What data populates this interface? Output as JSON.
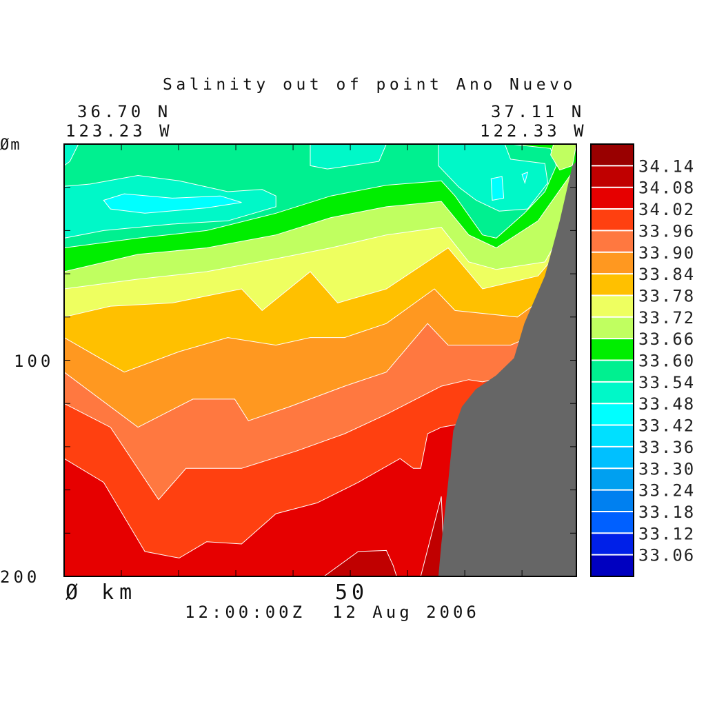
{
  "chart_data": {
    "type": "heatmap",
    "subtype": "filled-contour-section",
    "title": "Salinity out of point Ano Nuevo",
    "left_end": {
      "lat": "36.70 N",
      "lon": "123.23 W"
    },
    "right_end": {
      "lat": "37.11 N",
      "lon": "122.33 W"
    },
    "time_label": "12:00:00Z  12 Aug 2006",
    "xlabel": "km",
    "ylabel": "m",
    "xlim": [
      0,
      89.5
    ],
    "ylim": [
      0,
      200
    ],
    "x_ticks": [
      0,
      10,
      20,
      30,
      40,
      50,
      60,
      70,
      80
    ],
    "y_ticks": [
      0,
      20,
      40,
      60,
      80,
      100,
      120,
      140,
      160,
      180,
      200
    ],
    "x_tick_labels": [
      {
        "value": 0,
        "label": "Ø km"
      },
      {
        "value": 50,
        "label": "50"
      }
    ],
    "y_tick_labels": [
      {
        "value": 0,
        "label": "Øm"
      },
      {
        "value": 100,
        "label": "100"
      },
      {
        "value": 200,
        "label": "200"
      }
    ],
    "colorbar": {
      "labels": [
        "34.14",
        "34.08",
        "34.02",
        "33.96",
        "33.90",
        "33.84",
        "33.78",
        "33.72",
        "33.66",
        "33.60",
        "33.54",
        "33.48",
        "33.42",
        "33.36",
        "33.30",
        "33.24",
        "33.18",
        "33.12",
        "33.06"
      ],
      "colors": [
        "#990000",
        "#c00000",
        "#e60000",
        "#ff4010",
        "#ff7840",
        "#ff9820",
        "#ffc000",
        "#eeff60",
        "#c0ff60",
        "#00ee00",
        "#00f090",
        "#00f8c8",
        "#00ffff",
        "#00e0ff",
        "#00c0ff",
        "#00a0f0",
        "#0080f0",
        "#0060ff",
        "#0020e8",
        "#0000c0"
      ]
    },
    "background_color": "#00f090",
    "bands": [
      {
        "level": 33.6,
        "color": "#00ee00",
        "points": [
          [
            0,
            48
          ],
          [
            12.9,
            43.5
          ],
          [
            24.9,
            40
          ],
          [
            37,
            32
          ],
          [
            46.6,
            24
          ],
          [
            56.3,
            19
          ],
          [
            65.9,
            17
          ],
          [
            68.3,
            24
          ],
          [
            73.1,
            42
          ],
          [
            75.5,
            43.5
          ],
          [
            80.4,
            32
          ],
          [
            84,
            22
          ],
          [
            86,
            10
          ],
          [
            85,
            2
          ],
          [
            78,
            0
          ],
          [
            89.5,
            0
          ]
        ]
      },
      {
        "level": 33.66,
        "color": "#c0ff60",
        "points": [
          [
            0,
            59
          ],
          [
            12.9,
            51
          ],
          [
            24.9,
            48
          ],
          [
            37,
            42
          ],
          [
            46.6,
            34
          ],
          [
            56.3,
            29
          ],
          [
            65.9,
            26.5
          ],
          [
            70.7,
            42
          ],
          [
            75.5,
            48
          ],
          [
            82.8,
            35.5
          ],
          [
            88.8,
            13
          ]
        ]
      },
      {
        "level": 33.72,
        "color": "#eeff60",
        "points": [
          [
            0,
            67
          ],
          [
            12.9,
            62.5
          ],
          [
            24.9,
            59
          ],
          [
            37,
            53
          ],
          [
            46.6,
            48
          ],
          [
            56.3,
            42
          ],
          [
            65.9,
            38.5
          ],
          [
            70.7,
            54.5
          ],
          [
            75.5,
            58
          ],
          [
            84,
            54.5
          ],
          [
            89.5,
            29
          ]
        ]
      },
      {
        "level": 33.78,
        "color": "#ffc000",
        "points": [
          [
            0,
            80
          ],
          [
            8.1,
            75
          ],
          [
            18.9,
            73.5
          ],
          [
            27.3,
            69
          ],
          [
            31,
            67
          ],
          [
            34.6,
            77
          ],
          [
            43,
            59
          ],
          [
            47.8,
            73.5
          ],
          [
            56.3,
            67
          ],
          [
            67.1,
            48
          ],
          [
            73.1,
            67
          ],
          [
            82.8,
            61
          ],
          [
            89.5,
            40
          ]
        ]
      },
      {
        "level": 33.84,
        "color": "#ff9820",
        "points": [
          [
            0,
            89.5
          ],
          [
            10.5,
            105.5
          ],
          [
            20.1,
            96
          ],
          [
            28.6,
            89.5
          ],
          [
            37,
            93
          ],
          [
            43,
            89.5
          ],
          [
            49,
            89.5
          ],
          [
            56.3,
            83
          ],
          [
            64.7,
            67
          ],
          [
            68.3,
            77
          ],
          [
            79.2,
            80
          ],
          [
            89.5,
            60
          ]
        ]
      },
      {
        "level": 33.9,
        "color": "#ff7840",
        "points": [
          [
            0,
            105.5
          ],
          [
            12.9,
            131
          ],
          [
            22.5,
            118
          ],
          [
            29.8,
            118
          ],
          [
            32.2,
            128
          ],
          [
            39.4,
            121.5
          ],
          [
            49,
            112
          ],
          [
            56.3,
            105.5
          ],
          [
            63.5,
            83
          ],
          [
            67.1,
            93
          ],
          [
            78,
            93
          ],
          [
            89.5,
            80
          ]
        ]
      },
      {
        "level": 33.96,
        "color": "#ff4010",
        "points": [
          [
            0,
            120
          ],
          [
            8.1,
            131
          ],
          [
            16.5,
            164.5
          ],
          [
            21.3,
            150
          ],
          [
            31,
            150
          ],
          [
            40.6,
            142
          ],
          [
            49,
            134
          ],
          [
            56.3,
            125
          ],
          [
            65.9,
            112
          ],
          [
            70.7,
            109
          ],
          [
            73.1,
            110
          ],
          [
            89.5,
            100
          ]
        ]
      },
      {
        "level": 34.02,
        "color": "#e60000",
        "points": [
          [
            0,
            145.5
          ],
          [
            6.9,
            156.5
          ],
          [
            14.1,
            188.5
          ],
          [
            20.1,
            191.5
          ],
          [
            24.9,
            184
          ],
          [
            31,
            185
          ],
          [
            37,
            171
          ],
          [
            44.2,
            166
          ],
          [
            51.4,
            156.5
          ],
          [
            58.7,
            145.5
          ],
          [
            61,
            150
          ],
          [
            62.3,
            150
          ],
          [
            63.5,
            134
          ],
          [
            65.9,
            131
          ],
          [
            89.5,
            120
          ]
        ]
      }
    ],
    "pockets": [
      {
        "level": 34.08,
        "color": "#c00000",
        "points": [
          [
            45.4,
            200
          ],
          [
            51.4,
            188.5
          ],
          [
            56.3,
            188
          ],
          [
            57.5,
            195
          ],
          [
            58.1,
            200
          ]
        ]
      },
      {
        "level": 34.08,
        "color": "#c00000",
        "points": [
          [
            62.3,
            200
          ],
          [
            65.9,
            163
          ],
          [
            66.5,
            200
          ]
        ]
      },
      {
        "level": 33.48,
        "color": "#00f8c8",
        "points": [
          [
            0,
            0
          ],
          [
            2.5,
            0
          ],
          [
            1,
            8
          ],
          [
            0,
            10
          ]
        ]
      },
      {
        "level": 33.48,
        "color": "#00f8c8",
        "points": [
          [
            0,
            19.5
          ],
          [
            4.5,
            18.5
          ],
          [
            12.9,
            14.5
          ],
          [
            20.1,
            17
          ],
          [
            28.6,
            22
          ],
          [
            34.6,
            21
          ],
          [
            37,
            24
          ],
          [
            37,
            29
          ],
          [
            28.6,
            35.5
          ],
          [
            18.9,
            37
          ],
          [
            6.9,
            40
          ],
          [
            0,
            43.5
          ]
        ]
      },
      {
        "level": 33.42,
        "color": "#00ffff",
        "points": [
          [
            6.9,
            26
          ],
          [
            10.5,
            23
          ],
          [
            18.9,
            25
          ],
          [
            27.3,
            24
          ],
          [
            31,
            27
          ],
          [
            24.9,
            29.5
          ],
          [
            14.1,
            32
          ],
          [
            8.1,
            30
          ]
        ]
      },
      {
        "level": 33.48,
        "color": "#00f8c8",
        "points": [
          [
            43,
            0
          ],
          [
            56.3,
            0
          ],
          [
            55,
            8
          ],
          [
            46,
            11.5
          ],
          [
            43,
            10
          ]
        ]
      },
      {
        "level": 33.48,
        "color": "#00f8c8",
        "points": [
          [
            65.4,
            0
          ],
          [
            77,
            0
          ],
          [
            78,
            7
          ],
          [
            84,
            9
          ],
          [
            84.5,
            18
          ],
          [
            81,
            30
          ],
          [
            76,
            31
          ],
          [
            72,
            26
          ],
          [
            69,
            20
          ],
          [
            65.4,
            10
          ]
        ]
      },
      {
        "level": 33.42,
        "color": "#00ffff",
        "points": [
          [
            74.6,
            16
          ],
          [
            76.5,
            15
          ],
          [
            76.8,
            25
          ],
          [
            74.8,
            26
          ]
        ]
      },
      {
        "level": 33.42,
        "color": "#00ffff",
        "points": [
          [
            80,
            14
          ],
          [
            81,
            13
          ],
          [
            80.5,
            18
          ]
        ]
      },
      {
        "level": 33.66,
        "color": "#c0ff60",
        "points": [
          [
            85.5,
            0
          ],
          [
            89.5,
            0
          ],
          [
            88.8,
            10
          ],
          [
            86.6,
            12
          ],
          [
            85,
            5
          ]
        ]
      }
    ],
    "seafloor": {
      "color": "#666666",
      "points": [
        [
          88.8,
          10
        ],
        [
          86.6,
          35.5
        ],
        [
          84,
          61
        ],
        [
          80.4,
          83
        ],
        [
          78.6,
          99
        ],
        [
          75.5,
          107
        ],
        [
          71.9,
          113.5
        ],
        [
          69.5,
          121.5
        ],
        [
          68,
          132.5
        ],
        [
          67.1,
          156.5
        ],
        [
          65.9,
          185
        ],
        [
          65.4,
          200
        ],
        [
          89.5,
          200
        ],
        [
          89.5,
          8
        ]
      ]
    }
  }
}
